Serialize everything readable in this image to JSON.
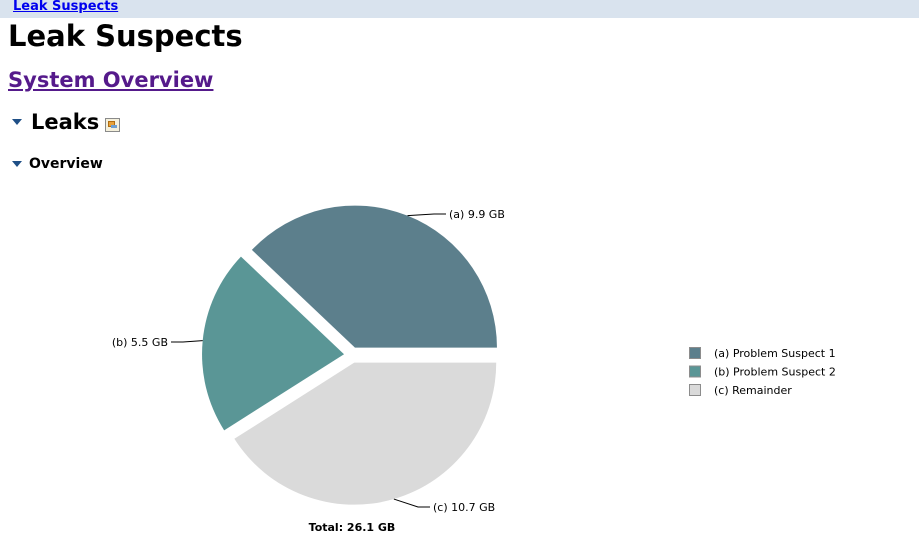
{
  "breadcrumb": {
    "label": "Leak Suspects"
  },
  "page": {
    "title": "Leak Suspects"
  },
  "overview_link": {
    "label": "System Overview"
  },
  "leaks_section": {
    "title": "Leaks",
    "icon": "details-icon"
  },
  "overview_section": {
    "title": "Overview"
  },
  "colors": {
    "suspect1": "#5c7f8c",
    "suspect2": "#5a9696",
    "remainder": "#dadada"
  },
  "chart_data": {
    "type": "pie",
    "unit": "GB",
    "total_label": "Total: 26.1 GB",
    "slices": [
      {
        "key": "(a)",
        "name": "Problem Suspect 1",
        "value": 9.9,
        "value_label": "9.9 GB"
      },
      {
        "key": "(b)",
        "name": "Problem Suspect 2",
        "value": 5.5,
        "value_label": "5.5 GB"
      },
      {
        "key": "(c)",
        "name": "Remainder",
        "value": 10.7,
        "value_label": "10.7 GB"
      }
    ]
  }
}
